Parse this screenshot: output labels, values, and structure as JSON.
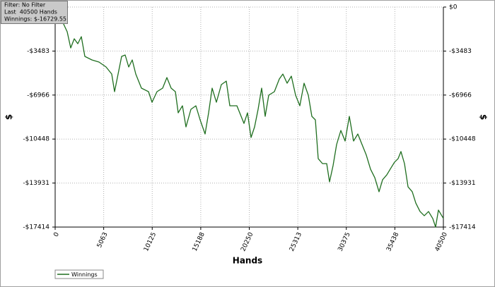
{
  "chart_data": {
    "type": "line",
    "x_label": "Hands",
    "y_label": "$",
    "annotations": [
      "Filter: No Filter",
      "Last  40500 Hands",
      "Winnings: $-16729.55"
    ],
    "xlim": [
      0,
      40500
    ],
    "ylim": [
      -17414,
      0
    ],
    "xticks": [
      0,
      5063,
      10125,
      15188,
      20250,
      25313,
      30375,
      35438,
      40500
    ],
    "yticks": [
      {
        "value": 0,
        "label": "$0"
      },
      {
        "value": -3483,
        "label": "-$3483"
      },
      {
        "value": -6966,
        "label": "-$6966"
      },
      {
        "value": -10448,
        "label": "-$10448"
      },
      {
        "value": -13931,
        "label": "-$13931"
      },
      {
        "value": -17414,
        "label": "-$17414"
      }
    ],
    "grid": true,
    "legend": "bottom-left",
    "x": [
      0,
      738,
      1254,
      1623,
      1992,
      2361,
      2729,
      3098,
      3836,
      4574,
      5311,
      5902,
      6197,
      6492,
      6934,
      7303,
      7672,
      8041,
      8410,
      9000,
      9738,
      10106,
      10623,
      11213,
      11656,
      12098,
      12541,
      12836,
      13279,
      13647,
      14164,
      14680,
      15123,
      15639,
      16008,
      16377,
      16820,
      17336,
      17852,
      18221,
      18959,
      19697,
      20066,
      20435,
      20803,
      21172,
      21541,
      21910,
      22279,
      22869,
      23385,
      23754,
      24197,
      24640,
      25082,
      25525,
      25967,
      26410,
      26779,
      27148,
      27443,
      27886,
      28328,
      28623,
      28992,
      29361,
      29804,
      30246,
      30689,
      31132,
      31574,
      32017,
      32460,
      32902,
      33345,
      33788,
      34156,
      34599,
      35042,
      35411,
      35780,
      36075,
      36443,
      36812,
      37255,
      37624,
      38066,
      38509,
      38952,
      39395,
      39690,
      39985,
      40500
    ],
    "series": [
      {
        "name": "Winnings",
        "color": "#1f6e1f",
        "values": [
          0,
          -1116,
          -1953,
          -3236,
          -2511,
          -2902,
          -2344,
          -3906,
          -4185,
          -4352,
          -4743,
          -5301,
          -6696,
          -5580,
          -3906,
          -3794,
          -4743,
          -4185,
          -5301,
          -6417,
          -6696,
          -7533,
          -6696,
          -6417,
          -5580,
          -6417,
          -6696,
          -8370,
          -7812,
          -9486,
          -8091,
          -7812,
          -8928,
          -10044,
          -8370,
          -6417,
          -7533,
          -6138,
          -5859,
          -7812,
          -7812,
          -9207,
          -8370,
          -10323,
          -9486,
          -8091,
          -6417,
          -8649,
          -6975,
          -6696,
          -5692,
          -5301,
          -6026,
          -5468,
          -6975,
          -7812,
          -6026,
          -6975,
          -8649,
          -8928,
          -11997,
          -12388,
          -12388,
          -13838,
          -12555,
          -10881,
          -9765,
          -10602,
          -8649,
          -10602,
          -10044,
          -10881,
          -11718,
          -12834,
          -13504,
          -14620,
          -13671,
          -13280,
          -12722,
          -12276,
          -11997,
          -11439,
          -12388,
          -14229,
          -14620,
          -15512,
          -16182,
          -16517,
          -16182,
          -16740,
          -17414,
          -16070,
          -16730
        ]
      }
    ]
  }
}
